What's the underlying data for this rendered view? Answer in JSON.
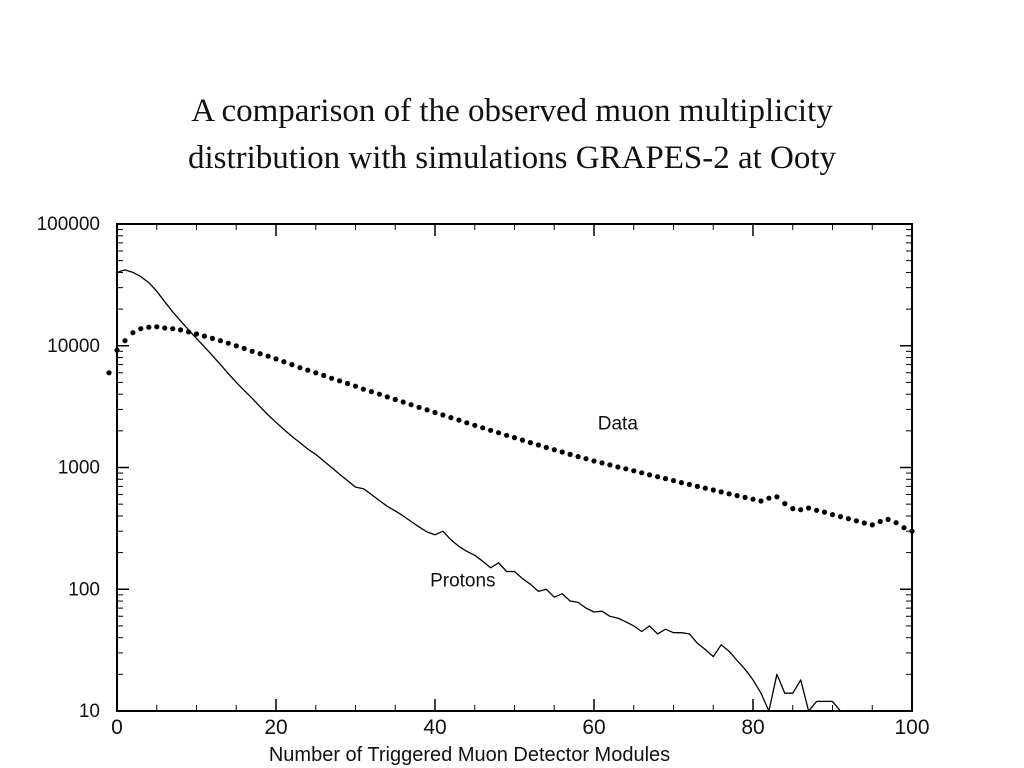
{
  "slide": {
    "title_line1": "A comparison of the observed muon multiplicity",
    "title_line2": "distribution with simulations GRAPES-2 at Ooty"
  },
  "chart_data": {
    "type": "scatter",
    "title": "",
    "xlabel": "Number of Triggered Muon Detector Modules",
    "ylabel": "",
    "xlim": [
      0,
      100
    ],
    "ylim": [
      10,
      100000
    ],
    "yscale": "log",
    "grid": false,
    "x_ticks": [
      0,
      20,
      40,
      60,
      80,
      100
    ],
    "y_ticks": [
      10,
      100,
      1000,
      10000,
      100000
    ],
    "x_tick_labels": [
      "0",
      "20",
      "40",
      "60",
      "80",
      "100"
    ],
    "y_tick_labels": [
      "10",
      "100",
      "1000",
      "10000",
      "100000"
    ],
    "series": [
      {
        "name": "Data",
        "style": "dots",
        "color": "#000000",
        "x": [
          -1,
          0,
          1,
          2,
          3,
          4,
          5,
          6,
          7,
          8,
          9,
          10,
          11,
          12,
          13,
          14,
          15,
          16,
          17,
          18,
          19,
          20,
          21,
          22,
          23,
          24,
          25,
          26,
          27,
          28,
          29,
          30,
          31,
          32,
          33,
          34,
          35,
          36,
          37,
          38,
          39,
          40,
          41,
          42,
          43,
          44,
          45,
          46,
          47,
          48,
          49,
          50,
          51,
          52,
          53,
          54,
          55,
          56,
          57,
          58,
          59,
          60,
          61,
          62,
          63,
          64,
          65,
          66,
          67,
          68,
          69,
          70,
          71,
          72,
          73,
          74,
          75,
          76,
          77,
          78,
          79,
          80,
          81,
          82,
          83,
          84,
          85,
          86,
          87,
          88,
          89,
          90,
          91,
          92,
          93,
          94,
          95,
          96,
          97,
          98,
          99,
          100
        ],
        "y": [
          6000,
          9200,
          11000,
          12800,
          13800,
          14200,
          14300,
          14000,
          13800,
          13500,
          13000,
          12500,
          12000,
          11500,
          11000,
          10500,
          10000,
          9500,
          9000,
          8600,
          8200,
          7800,
          7400,
          7000,
          6600,
          6300,
          6000,
          5700,
          5400,
          5150,
          4900,
          4650,
          4400,
          4200,
          4000,
          3800,
          3620,
          3450,
          3280,
          3120,
          2970,
          2830,
          2700,
          2570,
          2450,
          2330,
          2220,
          2120,
          2020,
          1930,
          1840,
          1760,
          1680,
          1600,
          1530,
          1460,
          1400,
          1340,
          1280,
          1230,
          1180,
          1130,
          1090,
          1050,
          1010,
          975,
          940,
          905,
          870,
          840,
          810,
          780,
          752,
          725,
          700,
          676,
          653,
          630,
          608,
          588,
          568,
          549,
          531,
          560,
          575,
          505,
          460,
          450,
          465,
          445,
          430,
          410,
          395,
          380,
          365,
          350,
          338,
          360,
          375,
          352,
          320,
          300
        ]
      },
      {
        "name": "Protons",
        "style": "line",
        "color": "#000000",
        "x": [
          0,
          1,
          2,
          3,
          4,
          5,
          6,
          7,
          8,
          9,
          10,
          11,
          12,
          13,
          14,
          15,
          16,
          17,
          18,
          19,
          20,
          21,
          22,
          23,
          24,
          25,
          26,
          27,
          28,
          29,
          30,
          31,
          32,
          33,
          34,
          35,
          36,
          37,
          38,
          39,
          40,
          41,
          42,
          43,
          44,
          45,
          46,
          47,
          48,
          49,
          50,
          51,
          52,
          53,
          54,
          55,
          56,
          57,
          58,
          59,
          60,
          61,
          62,
          63,
          64,
          65,
          66,
          67,
          68,
          69,
          70,
          71,
          72,
          73,
          74,
          75,
          76,
          77,
          78,
          79,
          80,
          81,
          82,
          83,
          84,
          85,
          86,
          87,
          88,
          89,
          90,
          91,
          92,
          93
        ],
        "y": [
          40000,
          42000,
          40000,
          37000,
          33000,
          28000,
          23000,
          19000,
          16000,
          13500,
          11500,
          9800,
          8300,
          7000,
          5900,
          5000,
          4300,
          3700,
          3150,
          2700,
          2350,
          2050,
          1800,
          1600,
          1420,
          1280,
          1130,
          1000,
          880,
          780,
          690,
          670,
          600,
          535,
          480,
          440,
          400,
          360,
          325,
          295,
          280,
          300,
          255,
          225,
          205,
          190,
          170,
          150,
          165,
          140,
          140,
          122,
          110,
          96,
          100,
          86,
          92,
          80,
          78,
          70,
          65,
          66,
          60,
          58,
          54,
          50,
          45,
          50,
          43,
          47,
          44,
          44,
          43,
          36,
          32,
          28,
          35,
          31,
          26,
          22,
          18,
          14,
          10,
          20,
          14,
          14,
          18,
          10,
          12,
          12,
          12,
          10,
          10,
          10
        ]
      }
    ],
    "annotations": [
      {
        "text": "Data",
        "x": 63,
        "y": 2050
      },
      {
        "text": "Protons",
        "x": 43.5,
        "y": 105
      }
    ]
  }
}
